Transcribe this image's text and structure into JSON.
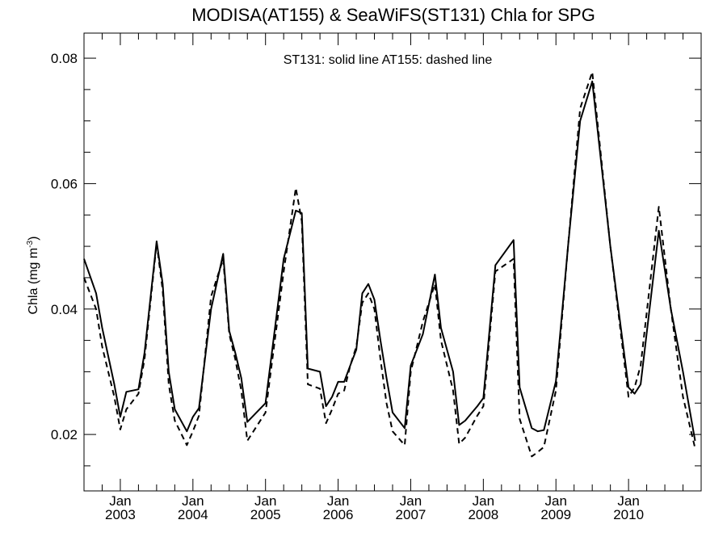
{
  "chart_data": {
    "type": "line",
    "title": "MODISA(AT155) & SeaWiFS(ST131)  Chla for SPG",
    "annotation": "ST131: solid line   AT155: dashed line",
    "ylabel": {
      "main": "Chla (mg m",
      "sup": "-3",
      "close": ")"
    },
    "xlabel": "",
    "ylim": [
      0.011,
      0.084
    ],
    "xlim": [
      "2002-07",
      "2010-12"
    ],
    "y_ticks": [
      {
        "value": 0.02,
        "label": "0.02"
      },
      {
        "value": 0.04,
        "label": "0.04"
      },
      {
        "value": 0.06,
        "label": "0.06"
      },
      {
        "value": 0.08,
        "label": "0.08"
      }
    ],
    "y_minor_ticks": [
      0.015,
      0.025,
      0.03,
      0.035,
      0.045,
      0.05,
      0.055,
      0.065,
      0.07,
      0.075
    ],
    "x_ticks": [
      {
        "value": "2003-01",
        "month": "Jan",
        "year": "2003"
      },
      {
        "value": "2004-01",
        "month": "Jan",
        "year": "2004"
      },
      {
        "value": "2005-01",
        "month": "Jan",
        "year": "2005"
      },
      {
        "value": "2006-01",
        "month": "Jan",
        "year": "2006"
      },
      {
        "value": "2007-01",
        "month": "Jan",
        "year": "2007"
      },
      {
        "value": "2008-01",
        "month": "Jan",
        "year": "2008"
      },
      {
        "value": "2009-01",
        "month": "Jan",
        "year": "2009"
      },
      {
        "value": "2010-01",
        "month": "Jan",
        "year": "2010"
      }
    ],
    "grid": false,
    "series": [
      {
        "name": "ST131",
        "style": "solid",
        "color": "#000000",
        "points": [
          [
            "2002-07",
            0.048
          ],
          [
            "2002-09",
            0.0425
          ],
          [
            "2002-10",
            0.037
          ],
          [
            "2002-12",
            0.028
          ],
          [
            "2003-01",
            0.0228
          ],
          [
            "2003-02",
            0.0268
          ],
          [
            "2003-04",
            0.0272
          ],
          [
            "2003-05",
            0.033
          ],
          [
            "2003-07",
            0.0508
          ],
          [
            "2003-08",
            0.044
          ],
          [
            "2003-09",
            0.03
          ],
          [
            "2003-10",
            0.024
          ],
          [
            "2003-12",
            0.0205
          ],
          [
            "2004-01",
            0.0228
          ],
          [
            "2004-02",
            0.0242
          ],
          [
            "2004-04",
            0.04
          ],
          [
            "2004-06",
            0.0488
          ],
          [
            "2004-07",
            0.0365
          ],
          [
            "2004-08",
            0.033
          ],
          [
            "2004-09",
            0.029
          ],
          [
            "2004-10",
            0.022
          ],
          [
            "2005-01",
            0.025
          ],
          [
            "2005-04",
            0.048
          ],
          [
            "2005-06",
            0.0557
          ],
          [
            "2005-07",
            0.0553
          ],
          [
            "2005-08",
            0.0305
          ],
          [
            "2005-10",
            0.03
          ],
          [
            "2005-11",
            0.0245
          ],
          [
            "2005-12",
            0.026
          ],
          [
            "2006-01",
            0.0284
          ],
          [
            "2006-02",
            0.0284
          ],
          [
            "2006-03",
            0.031
          ],
          [
            "2006-04",
            0.0335
          ],
          [
            "2006-05",
            0.0425
          ],
          [
            "2006-06",
            0.044
          ],
          [
            "2006-07",
            0.0415
          ],
          [
            "2006-08",
            0.035
          ],
          [
            "2006-09",
            0.029
          ],
          [
            "2006-10",
            0.0235
          ],
          [
            "2006-12",
            0.021
          ],
          [
            "2007-01",
            0.031
          ],
          [
            "2007-03",
            0.036
          ],
          [
            "2007-05",
            0.0455
          ],
          [
            "2007-06",
            0.037
          ],
          [
            "2007-08",
            0.03
          ],
          [
            "2007-09",
            0.0215
          ],
          [
            "2007-10",
            0.0222
          ],
          [
            "2007-12",
            0.0245
          ],
          [
            "2008-01",
            0.0258
          ],
          [
            "2008-03",
            0.047
          ],
          [
            "2008-06",
            0.051
          ],
          [
            "2008-07",
            0.0275
          ],
          [
            "2008-09",
            0.021
          ],
          [
            "2008-10",
            0.0205
          ],
          [
            "2008-11",
            0.0207
          ],
          [
            "2009-01",
            0.0285
          ],
          [
            "2009-03",
            0.05
          ],
          [
            "2009-05",
            0.07
          ],
          [
            "2009-07",
            0.0763
          ],
          [
            "2009-10",
            0.05
          ],
          [
            "2010-01",
            0.0275
          ],
          [
            "2010-02",
            0.0265
          ],
          [
            "2010-03",
            0.028
          ],
          [
            "2010-06",
            0.0525
          ],
          [
            "2010-08",
            0.04
          ],
          [
            "2010-10",
            0.03
          ],
          [
            "2010-12",
            0.019
          ]
        ]
      },
      {
        "name": "AT155",
        "style": "dashed",
        "color": "#000000",
        "points": [
          [
            "2002-07",
            0.045
          ],
          [
            "2002-09",
            0.04
          ],
          [
            "2002-10",
            0.034
          ],
          [
            "2002-12",
            0.026
          ],
          [
            "2003-01",
            0.0208
          ],
          [
            "2003-02",
            0.024
          ],
          [
            "2003-04",
            0.0265
          ],
          [
            "2003-05",
            0.032
          ],
          [
            "2003-07",
            0.0505
          ],
          [
            "2003-08",
            0.043
          ],
          [
            "2003-09",
            0.028
          ],
          [
            "2003-10",
            0.0222
          ],
          [
            "2003-12",
            0.0183
          ],
          [
            "2004-01",
            0.0205
          ],
          [
            "2004-02",
            0.023
          ],
          [
            "2004-04",
            0.042
          ],
          [
            "2004-06",
            0.048
          ],
          [
            "2004-07",
            0.036
          ],
          [
            "2004-08",
            0.032
          ],
          [
            "2004-09",
            0.027
          ],
          [
            "2004-10",
            0.019
          ],
          [
            "2005-01",
            0.0235
          ],
          [
            "2005-04",
            0.046
          ],
          [
            "2005-06",
            0.0593
          ],
          [
            "2005-07",
            0.054
          ],
          [
            "2005-08",
            0.028
          ],
          [
            "2005-10",
            0.0273
          ],
          [
            "2005-11",
            0.0218
          ],
          [
            "2005-12",
            0.024
          ],
          [
            "2006-01",
            0.0265
          ],
          [
            "2006-02",
            0.027
          ],
          [
            "2006-03",
            0.031
          ],
          [
            "2006-04",
            0.034
          ],
          [
            "2006-05",
            0.041
          ],
          [
            "2006-06",
            0.0425
          ],
          [
            "2006-07",
            0.04
          ],
          [
            "2006-08",
            0.032
          ],
          [
            "2006-09",
            0.025
          ],
          [
            "2006-10",
            0.0205
          ],
          [
            "2006-12",
            0.0183
          ],
          [
            "2007-01",
            0.03
          ],
          [
            "2007-03",
            0.038
          ],
          [
            "2007-05",
            0.044
          ],
          [
            "2007-06",
            0.035
          ],
          [
            "2007-08",
            0.027
          ],
          [
            "2007-09",
            0.0185
          ],
          [
            "2007-10",
            0.0195
          ],
          [
            "2007-12",
            0.023
          ],
          [
            "2008-01",
            0.0245
          ],
          [
            "2008-03",
            0.046
          ],
          [
            "2008-06",
            0.048
          ],
          [
            "2008-07",
            0.0225
          ],
          [
            "2008-09",
            0.0165
          ],
          [
            "2008-10",
            0.0172
          ],
          [
            "2008-11",
            0.018
          ],
          [
            "2009-01",
            0.027
          ],
          [
            "2009-03",
            0.05
          ],
          [
            "2009-05",
            0.072
          ],
          [
            "2009-07",
            0.0778
          ],
          [
            "2009-10",
            0.05
          ],
          [
            "2010-01",
            0.026
          ],
          [
            "2010-02",
            0.0275
          ],
          [
            "2010-03",
            0.031
          ],
          [
            "2010-06",
            0.0563
          ],
          [
            "2010-08",
            0.04
          ],
          [
            "2010-10",
            0.026
          ],
          [
            "2010-12",
            0.0178
          ]
        ]
      }
    ]
  }
}
